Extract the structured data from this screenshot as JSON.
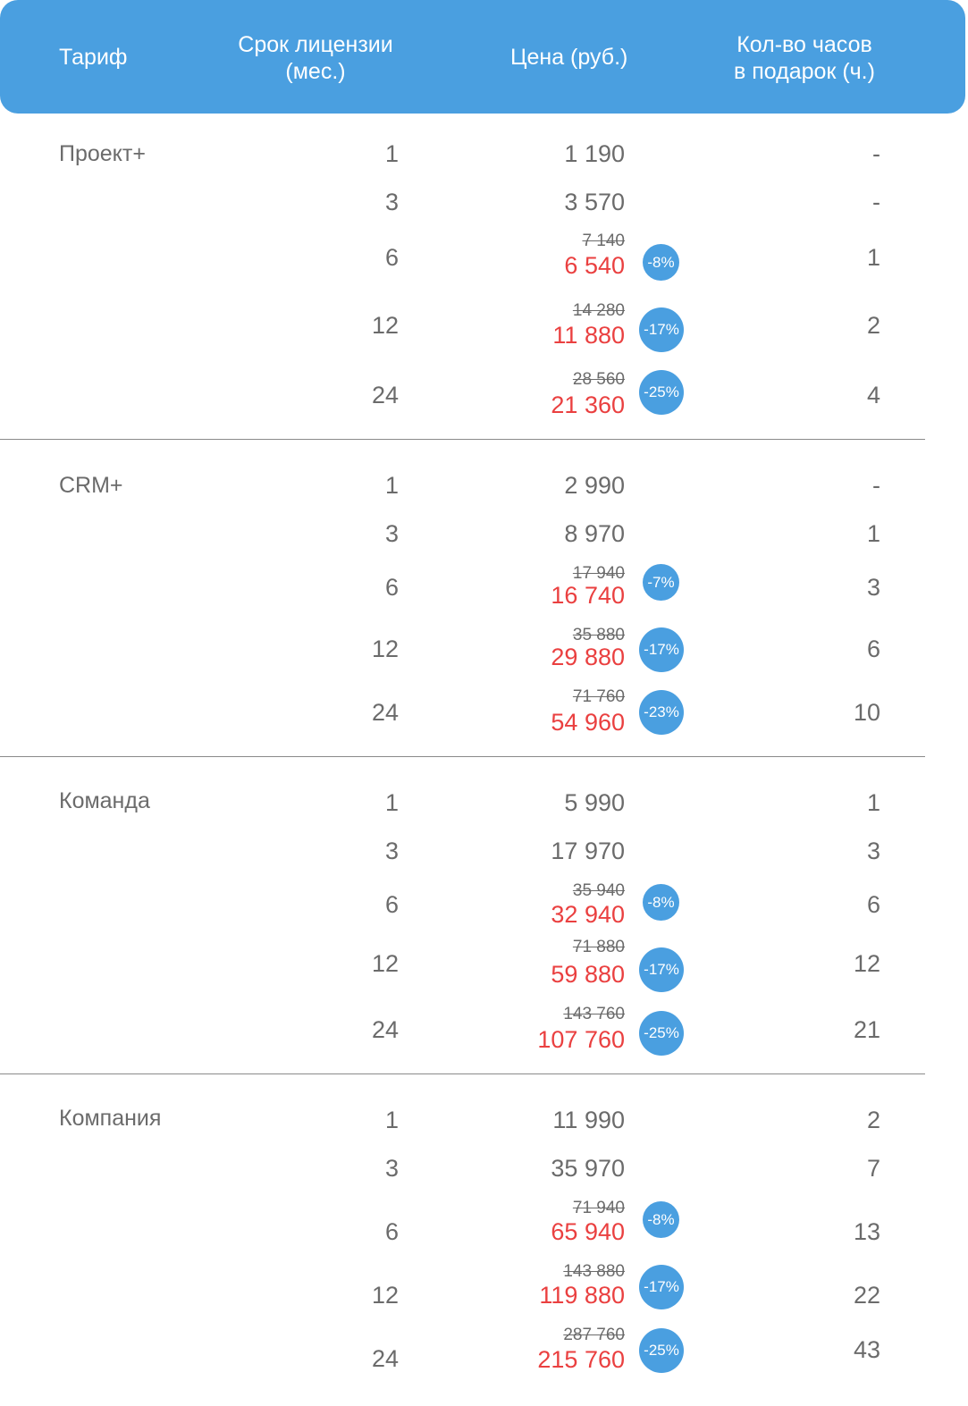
{
  "header": {
    "tariff": "Тариф",
    "term_line1": "Срок лицензии",
    "term_line2": "(мес.)",
    "price": "Цена (руб.)",
    "hours_line1": "Кол-во часов",
    "hours_line2": "в подарок (ч.)"
  },
  "plans": [
    {
      "name": "Проект+",
      "rows": [
        {
          "months": "1",
          "price": "1 190",
          "hours": "-"
        },
        {
          "months": "3",
          "price": "3 570",
          "hours": "-"
        },
        {
          "months": "6",
          "old": "7 140",
          "price": "6 540",
          "discount": "-8%",
          "hours": "1"
        },
        {
          "months": "12",
          "old": "14 280",
          "price": "11 880",
          "discount": "-17%",
          "hours": "2"
        },
        {
          "months": "24",
          "old": "28 560",
          "price": "21 360",
          "discount": "-25%",
          "hours": "4"
        }
      ]
    },
    {
      "name": "CRM+",
      "rows": [
        {
          "months": "1",
          "price": "2 990",
          "hours": "-"
        },
        {
          "months": "3",
          "price": "8 970",
          "hours": "1"
        },
        {
          "months": "6",
          "old": "17 940",
          "price": "16 740",
          "discount": "-7%",
          "hours": "3"
        },
        {
          "months": "12",
          "old": "35 880",
          "price": "29 880",
          "discount": "-17%",
          "hours": "6"
        },
        {
          "months": "24",
          "old": "71 760",
          "price": "54 960",
          "discount": "-23%",
          "hours": "10"
        }
      ]
    },
    {
      "name": "Команда",
      "rows": [
        {
          "months": "1",
          "price": "5 990",
          "hours": "1"
        },
        {
          "months": "3",
          "price": "17 970",
          "hours": "3"
        },
        {
          "months": "6",
          "old": "35 940",
          "price": "32 940",
          "discount": "-8%",
          "hours": "6"
        },
        {
          "months": "12",
          "old": "71 880",
          "price": "59 880",
          "discount": "-17%",
          "hours": "12"
        },
        {
          "months": "24",
          "old": "143 760",
          "price": "107 760",
          "discount": "-25%",
          "hours": "21"
        }
      ]
    },
    {
      "name": "Компания",
      "rows": [
        {
          "months": "1",
          "price": "11 990",
          "hours": "2"
        },
        {
          "months": "3",
          "price": "35 970",
          "hours": "7"
        },
        {
          "months": "6",
          "old": "71 940",
          "price": "65 940",
          "discount": "-8%",
          "hours": "13"
        },
        {
          "months": "12",
          "old": "143 880",
          "price": "119 880",
          "discount": "-17%",
          "hours": "22"
        },
        {
          "months": "24",
          "old": "287 760",
          "price": "215 760",
          "discount": "-25%",
          "hours": "43"
        }
      ]
    }
  ]
}
